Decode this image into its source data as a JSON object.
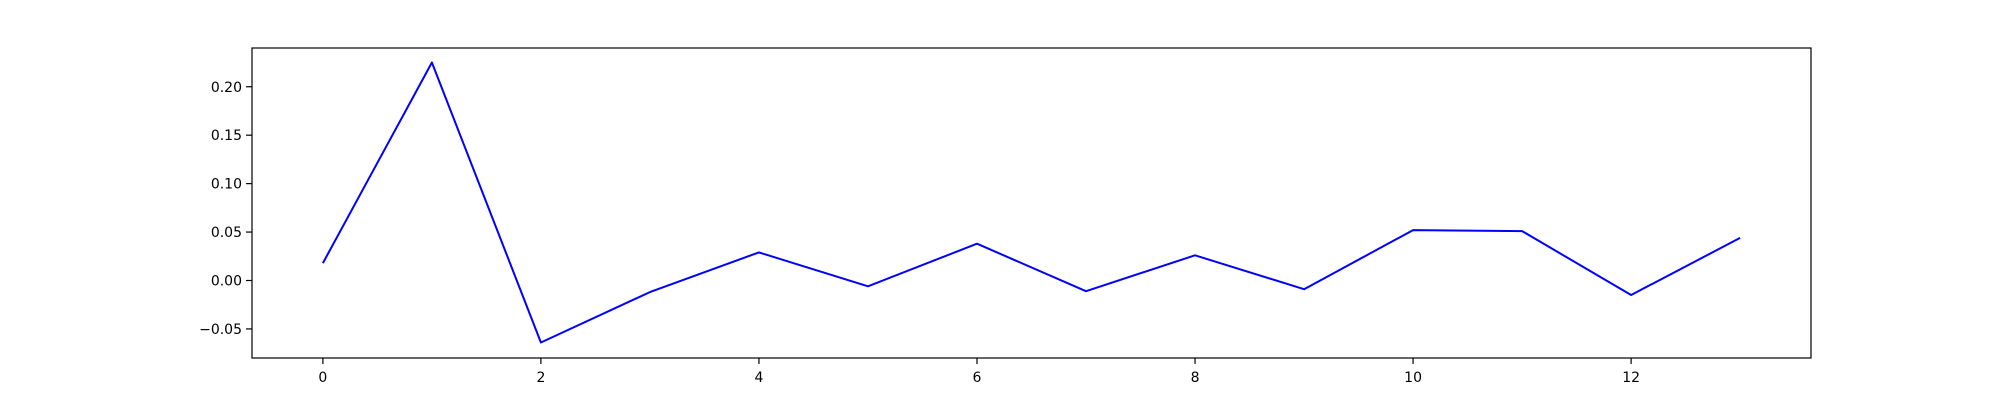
{
  "chart_data": {
    "type": "line",
    "title": "",
    "xlabel": "",
    "ylabel": "",
    "xlim": [
      -0.65,
      13.65
    ],
    "ylim": [
      -0.08,
      0.24
    ],
    "x_ticks": [
      0,
      2,
      4,
      6,
      8,
      10,
      12
    ],
    "x_tick_labels": [
      "0",
      "2",
      "4",
      "6",
      "8",
      "10",
      "12"
    ],
    "y_ticks": [
      -0.05,
      0.0,
      0.05,
      0.1,
      0.15,
      0.2
    ],
    "y_tick_labels": [
      "−0.05",
      "0.00",
      "0.05",
      "0.10",
      "0.15",
      "0.20"
    ],
    "grid": false,
    "legend": "none",
    "series": [
      {
        "color": "#0000ff",
        "x": [
          0,
          1,
          2,
          3,
          4,
          5,
          6,
          7,
          8,
          9,
          10,
          11,
          12,
          13
        ],
        "y": [
          0.018,
          0.225,
          -0.064,
          -0.012,
          0.029,
          -0.006,
          0.038,
          -0.011,
          0.026,
          -0.009,
          0.052,
          0.051,
          -0.015,
          0.044
        ]
      }
    ]
  }
}
